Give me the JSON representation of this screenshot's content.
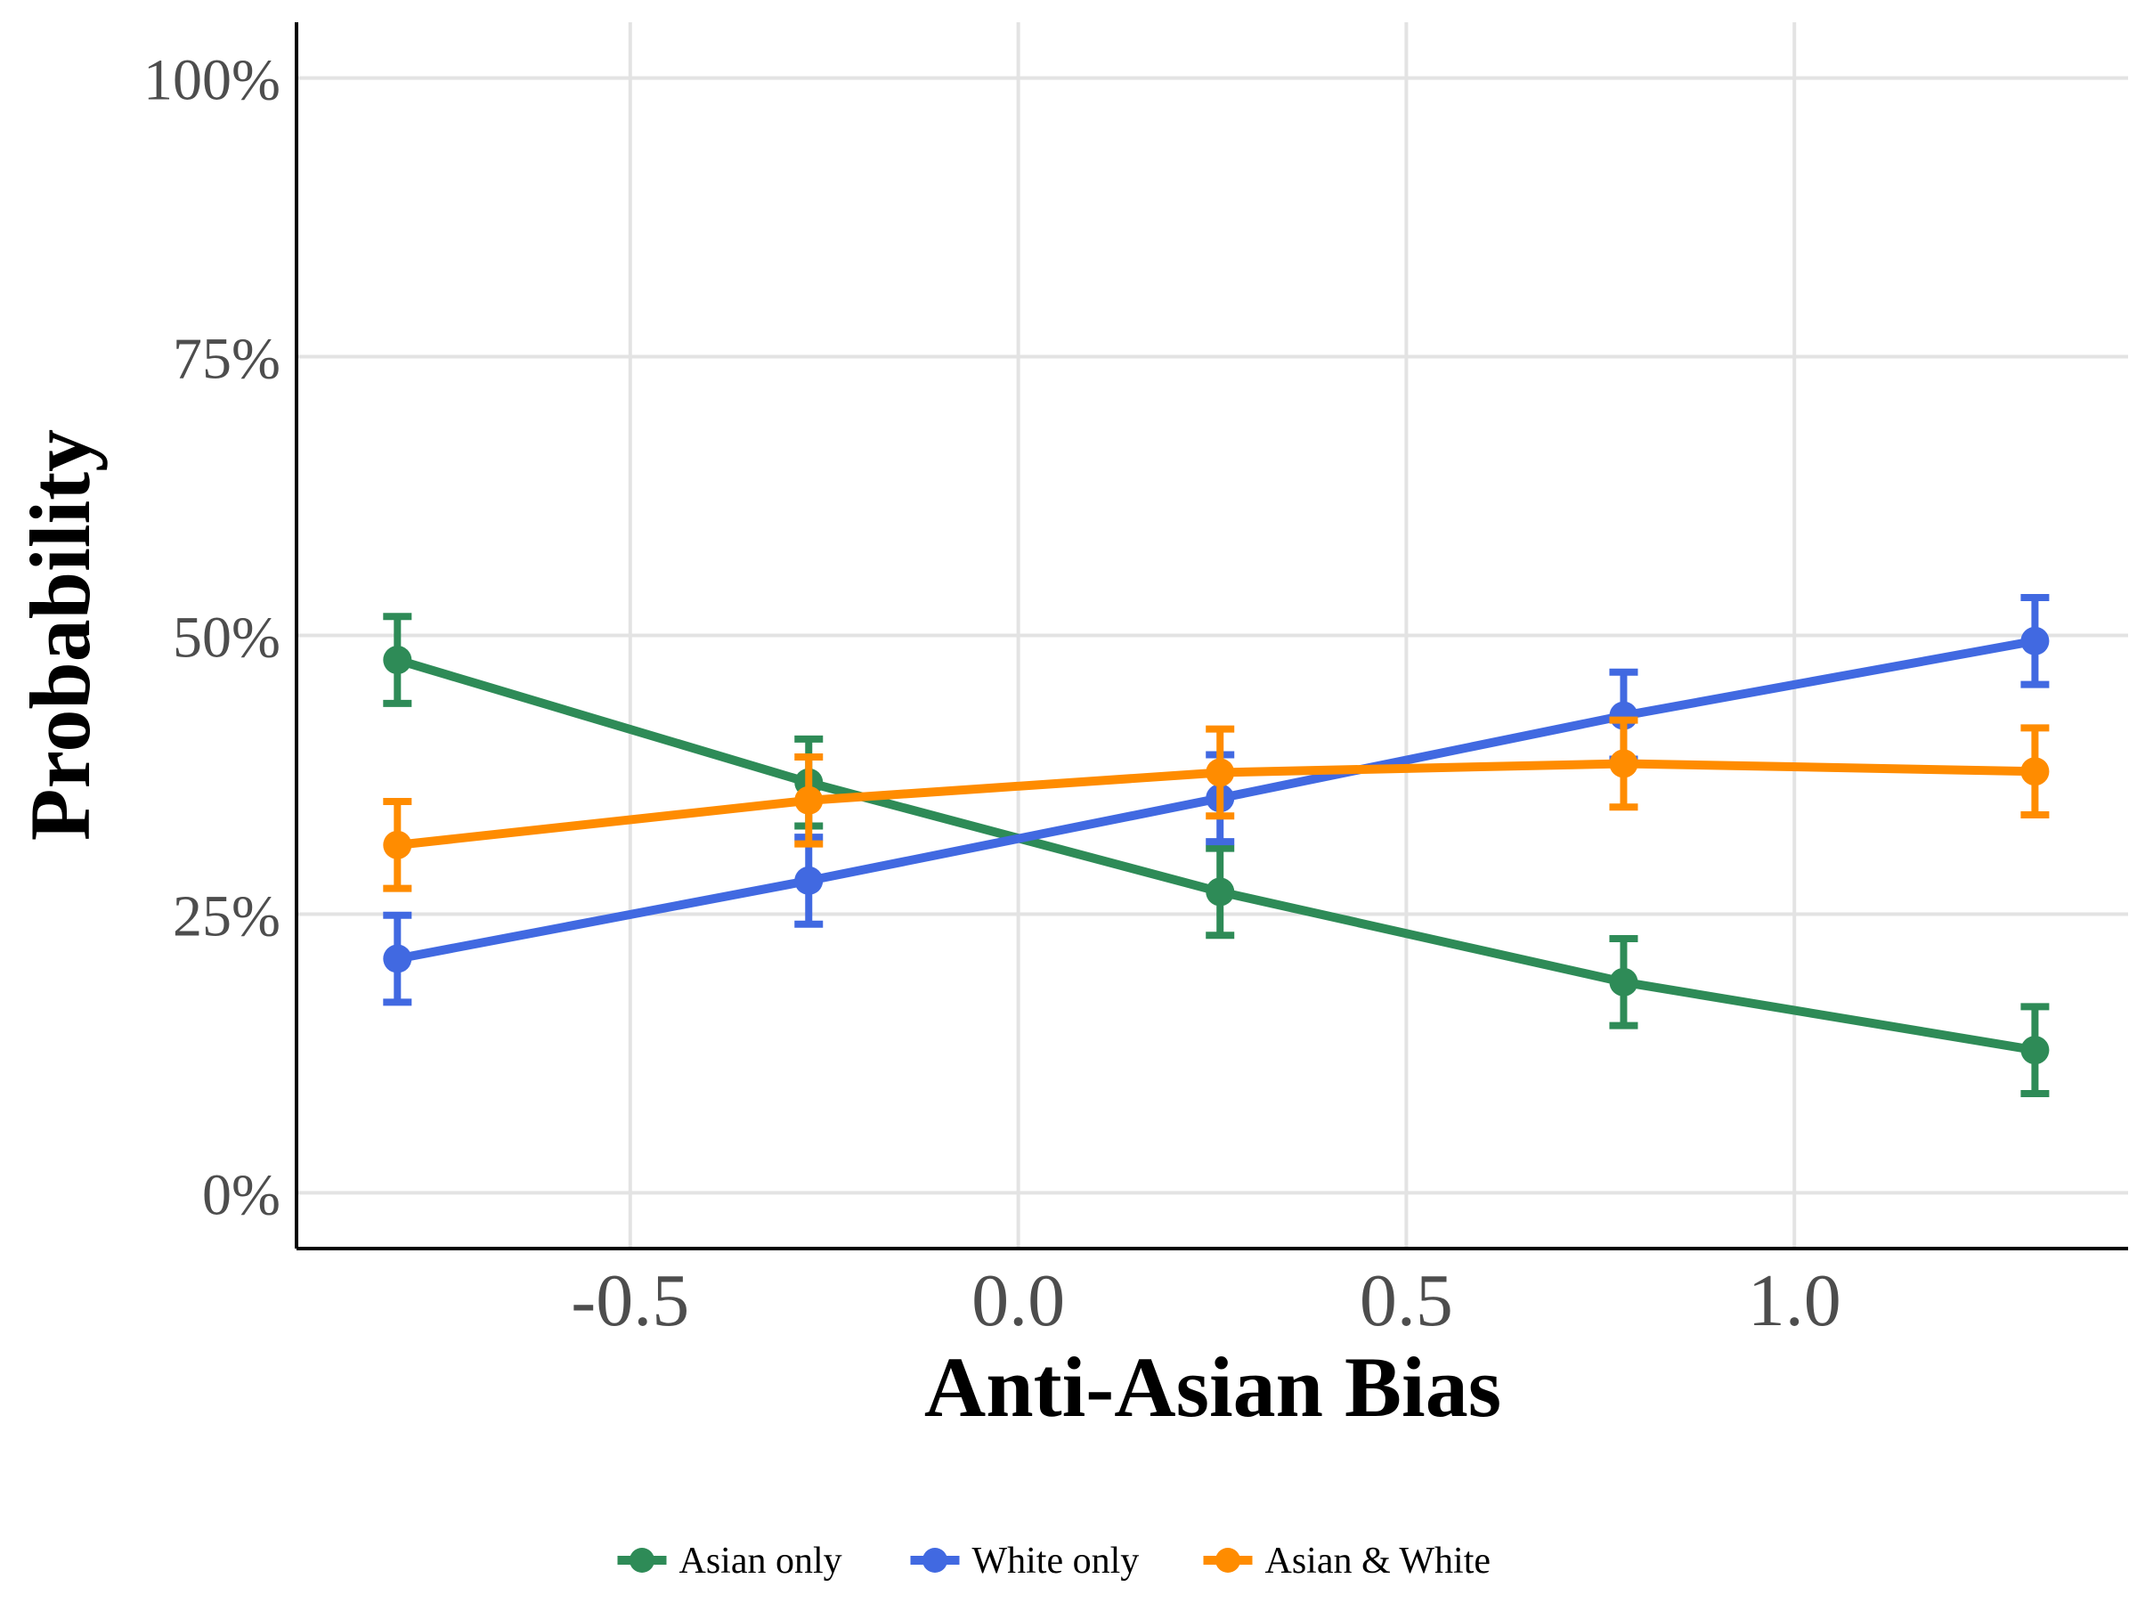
{
  "chart_data": {
    "type": "line",
    "title": "",
    "xlabel": "Anti-Asian Bias",
    "ylabel": "Probability",
    "x": [
      -0.8,
      -0.27,
      0.26,
      0.78,
      1.31
    ],
    "xlim": [
      -0.93,
      1.43
    ],
    "ylim": [
      -0.05,
      1.05
    ],
    "xticks": [
      -0.5,
      0.0,
      0.5,
      1.0
    ],
    "xtick_labels": [
      "-0.5",
      "0.0",
      "0.5",
      "1.0"
    ],
    "yticks": [
      0,
      0.25,
      0.5,
      0.75,
      1.0
    ],
    "ytick_labels": [
      "0%",
      "25%",
      "50%",
      "75%",
      "100%"
    ],
    "grid": true,
    "legend_position": "bottom",
    "error_bars": true,
    "series": [
      {
        "name": "Asian only",
        "color": "#2e8b57",
        "values": [
          0.478,
          0.368,
          0.27,
          0.189,
          0.128
        ],
        "lower": [
          0.439,
          0.329,
          0.231,
          0.15,
          0.089
        ],
        "upper": [
          0.517,
          0.407,
          0.309,
          0.228,
          0.167
        ]
      },
      {
        "name": "White only",
        "color": "#4169e1",
        "values": [
          0.21,
          0.28,
          0.354,
          0.428,
          0.495
        ],
        "lower": [
          0.171,
          0.241,
          0.315,
          0.389,
          0.456
        ],
        "upper": [
          0.249,
          0.319,
          0.393,
          0.467,
          0.534
        ]
      },
      {
        "name": "Asian & White",
        "color": "#ff8c00",
        "values": [
          0.312,
          0.352,
          0.377,
          0.385,
          0.378
        ],
        "lower": [
          0.273,
          0.313,
          0.338,
          0.346,
          0.339
        ],
        "upper": [
          0.351,
          0.391,
          0.416,
          0.424,
          0.417
        ]
      }
    ]
  }
}
